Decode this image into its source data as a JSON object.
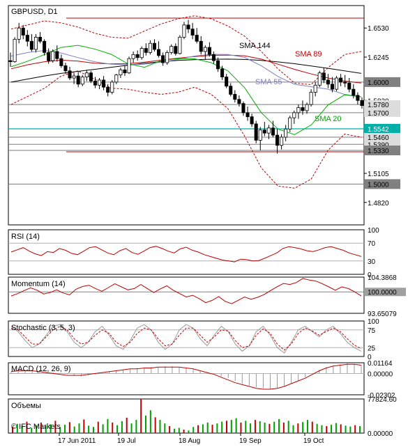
{
  "chart_data": {
    "type": "candlestick",
    "symbol_label": "GBPUSD, D1",
    "main": {
      "y_ticks": [
        "1.6530",
        "1.6245",
        "1.5820",
        "1.5105",
        "1.4820"
      ],
      "levels": [
        {
          "label": "1.6000",
          "value": 1.6
        },
        {
          "label": "1.5780",
          "value": 1.578
        },
        {
          "label": "1.5700",
          "value": 1.57
        },
        {
          "label": "1.5542",
          "value": 1.5542
        },
        {
          "label": "1.5460",
          "value": 1.546
        },
        {
          "label": "1.5390",
          "value": 1.539
        },
        {
          "label": "1.5330",
          "value": 1.533
        },
        {
          "label": "1.5000",
          "value": 1.5
        }
      ],
      "indicator_labels": [
        "SMA 144",
        "SMA 89",
        "SMA 55",
        "SMA 20"
      ],
      "ylim": [
        1.46,
        1.675
      ],
      "candles_approx": [
        [
          1.621,
          1.629,
          1.615,
          1.62
        ],
        [
          1.62,
          1.644,
          1.619,
          1.642
        ],
        [
          1.642,
          1.658,
          1.638,
          1.653
        ],
        [
          1.653,
          1.656,
          1.642,
          1.646
        ],
        [
          1.646,
          1.651,
          1.635,
          1.64
        ],
        [
          1.64,
          1.647,
          1.63,
          1.632
        ],
        [
          1.632,
          1.647,
          1.629,
          1.644
        ],
        [
          1.644,
          1.649,
          1.638,
          1.64
        ],
        [
          1.64,
          1.642,
          1.626,
          1.629
        ],
        [
          1.629,
          1.633,
          1.618,
          1.621
        ],
        [
          1.621,
          1.632,
          1.619,
          1.63
        ],
        [
          1.63,
          1.636,
          1.62,
          1.623
        ],
        [
          1.623,
          1.627,
          1.614,
          1.616
        ],
        [
          1.616,
          1.619,
          1.608,
          1.611
        ],
        [
          1.611,
          1.615,
          1.602,
          1.604
        ],
        [
          1.604,
          1.609,
          1.598,
          1.606
        ],
        [
          1.606,
          1.61,
          1.595,
          1.598
        ],
        [
          1.598,
          1.607,
          1.596,
          1.605
        ],
        [
          1.605,
          1.612,
          1.601,
          1.609
        ],
        [
          1.609,
          1.611,
          1.599,
          1.601
        ],
        [
          1.601,
          1.605,
          1.594,
          1.597
        ],
        [
          1.597,
          1.604,
          1.593,
          1.602
        ],
        [
          1.602,
          1.606,
          1.592,
          1.595
        ],
        [
          1.595,
          1.598,
          1.586,
          1.59
        ],
        [
          1.59,
          1.602,
          1.588,
          1.6
        ],
        [
          1.6,
          1.608,
          1.598,
          1.607
        ],
        [
          1.607,
          1.614,
          1.604,
          1.612
        ],
        [
          1.612,
          1.616,
          1.606,
          1.609
        ],
        [
          1.609,
          1.625,
          1.608,
          1.623
        ],
        [
          1.623,
          1.63,
          1.619,
          1.627
        ],
        [
          1.627,
          1.631,
          1.621,
          1.624
        ],
        [
          1.624,
          1.635,
          1.622,
          1.633
        ],
        [
          1.633,
          1.638,
          1.626,
          1.629
        ],
        [
          1.629,
          1.641,
          1.627,
          1.638
        ],
        [
          1.638,
          1.642,
          1.63,
          1.632
        ],
        [
          1.632,
          1.64,
          1.624,
          1.626
        ],
        [
          1.626,
          1.629,
          1.616,
          1.619
        ],
        [
          1.619,
          1.631,
          1.617,
          1.629
        ],
        [
          1.629,
          1.637,
          1.627,
          1.635
        ],
        [
          1.635,
          1.638,
          1.626,
          1.628
        ],
        [
          1.628,
          1.646,
          1.627,
          1.644
        ],
        [
          1.644,
          1.659,
          1.642,
          1.656
        ],
        [
          1.656,
          1.661,
          1.648,
          1.652
        ],
        [
          1.652,
          1.658,
          1.642,
          1.646
        ],
        [
          1.646,
          1.653,
          1.638,
          1.64
        ],
        [
          1.64,
          1.645,
          1.627,
          1.63
        ],
        [
          1.63,
          1.636,
          1.622,
          1.634
        ],
        [
          1.634,
          1.639,
          1.625,
          1.627
        ],
        [
          1.627,
          1.63,
          1.618,
          1.621
        ],
        [
          1.621,
          1.624,
          1.61,
          1.613
        ],
        [
          1.613,
          1.616,
          1.602,
          1.605
        ],
        [
          1.605,
          1.608,
          1.594,
          1.596
        ],
        [
          1.596,
          1.599,
          1.586,
          1.588
        ],
        [
          1.588,
          1.592,
          1.58,
          1.583
        ],
        [
          1.583,
          1.587,
          1.576,
          1.579
        ],
        [
          1.579,
          1.581,
          1.567,
          1.57
        ],
        [
          1.57,
          1.576,
          1.562,
          1.566
        ],
        [
          1.566,
          1.569,
          1.556,
          1.559
        ],
        [
          1.559,
          1.562,
          1.54,
          1.543
        ],
        [
          1.543,
          1.556,
          1.533,
          1.553
        ],
        [
          1.553,
          1.561,
          1.547,
          1.55
        ],
        [
          1.55,
          1.558,
          1.544,
          1.555
        ],
        [
          1.555,
          1.562,
          1.546,
          1.548
        ],
        [
          1.548,
          1.554,
          1.53,
          1.538
        ],
        [
          1.538,
          1.549,
          1.534,
          1.546
        ],
        [
          1.546,
          1.558,
          1.542,
          1.554
        ],
        [
          1.554,
          1.567,
          1.551,
          1.565
        ],
        [
          1.565,
          1.572,
          1.559,
          1.57
        ],
        [
          1.57,
          1.578,
          1.564,
          1.575
        ],
        [
          1.575,
          1.582,
          1.568,
          1.572
        ],
        [
          1.572,
          1.58,
          1.569,
          1.578
        ],
        [
          1.578,
          1.593,
          1.576,
          1.59
        ],
        [
          1.59,
          1.6,
          1.586,
          1.597
        ],
        [
          1.597,
          1.611,
          1.595,
          1.609
        ],
        [
          1.609,
          1.614,
          1.599,
          1.602
        ],
        [
          1.602,
          1.608,
          1.594,
          1.598
        ],
        [
          1.598,
          1.605,
          1.59,
          1.593
        ],
        [
          1.593,
          1.606,
          1.591,
          1.604
        ],
        [
          1.604,
          1.608,
          1.596,
          1.6
        ],
        [
          1.6,
          1.607,
          1.595,
          1.599
        ],
        [
          1.599,
          1.604,
          1.59,
          1.593
        ],
        [
          1.593,
          1.598,
          1.584,
          1.587
        ],
        [
          1.587,
          1.59,
          1.578,
          1.582
        ],
        [
          1.582,
          1.585,
          1.574,
          1.577
        ]
      ],
      "sma20_approx": [
        1.615,
        1.6205,
        1.627,
        1.634,
        1.636,
        1.6325,
        1.6272,
        1.618,
        1.6145,
        1.6212,
        1.623,
        1.6228,
        1.619,
        1.611,
        1.5945,
        1.57,
        1.554,
        1.5485,
        1.558,
        1.5775,
        1.5875,
        1.5855
      ],
      "sma55_approx": [
        1.6255,
        1.629,
        1.631,
        1.6285,
        1.624,
        1.62,
        1.6175,
        1.617,
        1.6175,
        1.6195,
        1.6222,
        1.6255,
        1.6272,
        1.627,
        1.6242,
        1.616,
        1.6055,
        1.5978,
        1.5955,
        1.593,
        1.588,
        1.5855
      ],
      "sma89_approx": [
        1.613,
        1.617,
        1.62,
        1.6215,
        1.6205,
        1.6185,
        1.6178,
        1.618,
        1.6195,
        1.6215,
        1.6235,
        1.625,
        1.6262,
        1.6265,
        1.6258,
        1.6225,
        1.6175,
        1.6125,
        1.608,
        1.604,
        1.601,
        1.599
      ],
      "sma144_approx": [
        1.6,
        1.603,
        1.606,
        1.6085,
        1.6105,
        1.6125,
        1.6145,
        1.6165,
        1.6185,
        1.62,
        1.6212,
        1.622,
        1.6224,
        1.6225,
        1.6222,
        1.6212,
        1.6198,
        1.618,
        1.6158,
        1.6135,
        1.611,
        1.6085
      ],
      "bb_upper_approx": [
        1.652,
        1.656,
        1.66,
        1.658,
        1.654,
        1.648,
        1.644,
        1.643,
        1.65,
        1.657,
        1.662,
        1.665,
        1.662,
        1.655,
        1.645,
        1.63,
        1.613,
        1.599,
        1.5975,
        1.614,
        1.627,
        1.63
      ],
      "bb_lower_approx": [
        1.578,
        1.586,
        1.594,
        1.606,
        1.611,
        1.603,
        1.594,
        1.593,
        1.59,
        1.588,
        1.59,
        1.595,
        1.588,
        1.574,
        1.547,
        1.516,
        1.498,
        1.496,
        1.505,
        1.533,
        1.549,
        1.546
      ]
    },
    "rsi": {
      "label": "RSI (14)",
      "y_ticks": [
        "100",
        "70",
        "30",
        "0"
      ],
      "ylim": [
        0,
        100
      ],
      "values_approx": [
        50,
        55,
        60,
        52,
        46,
        42,
        51,
        49,
        58,
        54,
        47,
        44,
        52,
        60,
        62,
        55,
        48,
        44,
        53,
        58,
        49,
        45,
        52,
        60,
        63,
        58,
        52,
        48,
        57,
        61,
        54,
        50,
        44,
        40,
        36,
        32,
        30,
        28,
        34,
        33,
        30,
        31,
        36,
        42,
        48,
        58,
        62,
        60,
        57,
        53,
        51,
        55,
        60,
        62,
        58,
        54,
        48,
        44,
        40
      ]
    },
    "momentum": {
      "label": "Momentum (14)",
      "y_ticks": [
        "104.3868",
        "100.0000",
        "93.65079"
      ],
      "ylim": [
        93.65079,
        104.3868
      ],
      "values_approx": [
        98.8,
        99.5,
        100.4,
        101.2,
        100.5,
        99.4,
        99.8,
        100.6,
        99.7,
        99.1,
        100.8,
        101.6,
        102.0,
        101.0,
        100.2,
        101.3,
        102.4,
        101.5,
        100.6,
        101.0,
        102.2,
        101.0,
        99.8,
        100.9,
        101.8,
        100.5,
        99.5,
        98.5,
        99.0,
        98.0,
        96.8,
        97.5,
        98.6,
        97.2,
        96.5,
        97.5,
        98.5,
        97.8,
        98.4,
        99.2,
        100.4,
        101.5,
        102.5,
        102.2,
        102.8,
        104.0,
        103.5,
        103.2,
        102.4,
        101.5,
        100.5,
        101.5,
        101.0,
        100.0,
        98.8
      ]
    },
    "stochastic": {
      "label": "Stochastic (3, 5, 3)",
      "y_ticks": [
        "100",
        "75",
        "25",
        "0"
      ],
      "ylim": [
        0,
        100
      ],
      "k_approx": [
        85,
        70,
        45,
        25,
        35,
        60,
        85,
        90,
        70,
        40,
        25,
        40,
        70,
        85,
        60,
        30,
        20,
        45,
        80,
        90,
        75,
        40,
        20,
        35,
        75,
        90,
        80,
        50,
        30,
        60,
        85,
        70,
        35,
        15,
        30,
        70,
        85,
        60,
        25,
        10,
        40,
        75,
        85,
        70,
        55,
        75,
        85,
        65,
        40,
        25,
        15
      ],
      "d_approx": [
        80,
        75,
        55,
        35,
        35,
        55,
        75,
        85,
        75,
        50,
        35,
        40,
        60,
        75,
        65,
        40,
        28,
        40,
        65,
        80,
        75,
        50,
        30,
        35,
        60,
        80,
        80,
        60,
        40,
        55,
        75,
        72,
        45,
        25,
        30,
        60,
        78,
        65,
        35,
        18,
        35,
        65,
        80,
        72,
        60,
        70,
        80,
        70,
        50,
        32,
        22
      ]
    },
    "macd": {
      "label": "MACD (12, 26, 9)",
      "y_ticks": [
        "0.01164",
        "0.00000",
        "-0.02302"
      ],
      "ylim": [
        -0.02302,
        0.01164
      ],
      "hist_approx": [
        0.002,
        0.003,
        0.004,
        0.004,
        0.003,
        0.002,
        0.001,
        0.0,
        -0.001,
        -0.002,
        -0.003,
        -0.002,
        -0.001,
        0.001,
        0.002,
        0.003,
        0.004,
        0.005,
        0.006,
        0.006,
        0.007,
        0.007,
        0.008,
        0.008,
        0.007,
        0.006,
        0.005,
        0.003,
        0.001,
        -0.001,
        -0.003,
        -0.005,
        -0.008,
        -0.011,
        -0.013,
        -0.015,
        -0.016,
        -0.017,
        -0.016,
        -0.014,
        -0.011,
        -0.008,
        -0.004,
        0.0,
        0.004,
        0.007,
        0.009,
        0.01,
        0.011,
        0.01,
        0.009
      ],
      "signal_approx": [
        0.002,
        0.003,
        0.003,
        0.003,
        0.002,
        0.001,
        0.0,
        -0.001,
        -0.002,
        -0.002,
        -0.002,
        -0.001,
        0.0,
        0.001,
        0.002,
        0.003,
        0.004,
        0.005,
        0.005,
        0.006,
        0.006,
        0.007,
        0.007,
        0.007,
        0.007,
        0.006,
        0.005,
        0.003,
        0.001,
        -0.001,
        -0.004,
        -0.007,
        -0.01,
        -0.012,
        -0.014,
        -0.016,
        -0.017,
        -0.017,
        -0.016,
        -0.014,
        -0.011,
        -0.008,
        -0.005,
        -0.001,
        0.003,
        0.006,
        0.008,
        0.009,
        0.01,
        0.01,
        0.009
      ]
    },
    "volume": {
      "label": "Объемы",
      "y_ticks": [
        "77824.60",
        "0.00000"
      ],
      "ylim": [
        0,
        77824.6
      ],
      "values_approx": [
        14000,
        21000,
        17000,
        26000,
        12000,
        18000,
        24000,
        16000,
        20000,
        28000,
        13000,
        19000,
        25000,
        15000,
        22000,
        31000,
        17000,
        14000,
        26000,
        20000,
        32000,
        24000,
        18000,
        27000,
        35000,
        22000,
        30000,
        78000,
        40000,
        52000,
        36000,
        30000,
        22000,
        16000,
        10000,
        12000,
        8000,
        6000,
        14000,
        18000,
        20000,
        24000,
        19000,
        22000,
        26000,
        28000,
        30000,
        34000,
        24000,
        28000,
        22000,
        30000,
        27000,
        24000,
        21000,
        26000,
        32000,
        24000,
        28000,
        18000,
        22000,
        25000,
        30000,
        26000,
        21000,
        18000,
        16000,
        19000,
        23000,
        20000,
        17000,
        15000,
        18000,
        16000
      ]
    },
    "x_ticks": [
      "17 Jun 2011",
      "19 Jul",
      "18 Aug",
      "19 Sep",
      "19 Oct"
    ]
  },
  "copyright": "© IFC Markets"
}
